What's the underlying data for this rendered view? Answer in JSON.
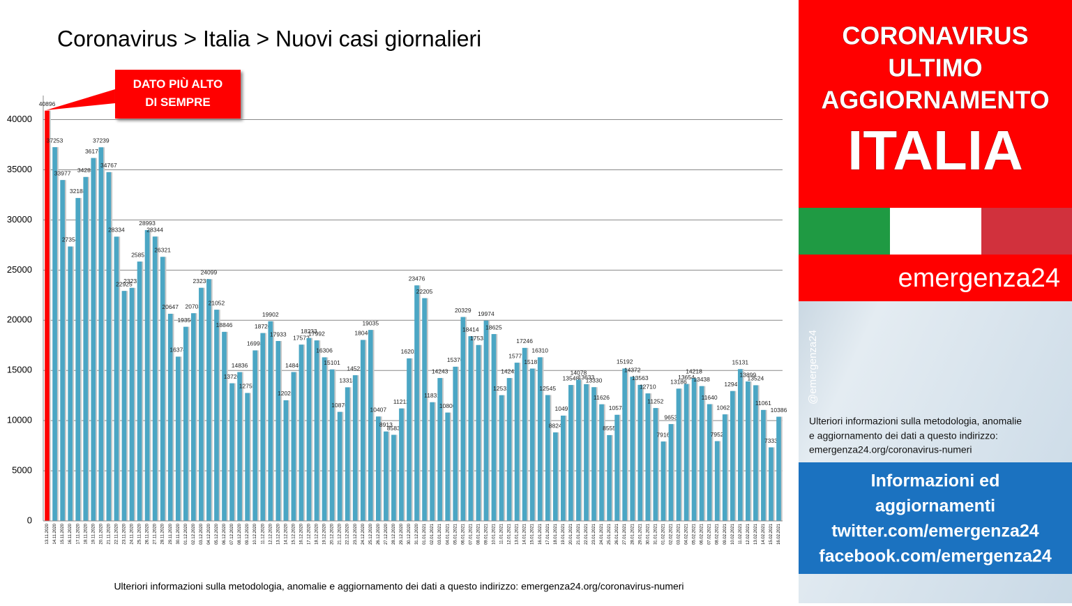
{
  "chart_data": {
    "type": "bar",
    "title": "Coronavirus > Italia > Nuovi casi giornalieri",
    "annotation": "DATO PIÙ ALTO DI SEMPRE",
    "color": "#4ba6c4",
    "highlight_color": "#ff0000",
    "grid": true,
    "ylim": [
      0,
      42400
    ],
    "yticks": [
      0,
      5000,
      10000,
      15000,
      20000,
      25000,
      30000,
      35000,
      40000
    ],
    "categories": [
      "13.11.2020",
      "14.11.2020",
      "15.11.2020",
      "16.11.2020",
      "17.11.2020",
      "18.11.2020",
      "19.11.2020",
      "20.11.2020",
      "21.11.2020",
      "22.11.2020",
      "23.11.2020",
      "24.11.2020",
      "25.11.2020",
      "26.11.2020",
      "27.11.2020",
      "28.11.2020",
      "29.11.2020",
      "30.11.2020",
      "01.12.2020",
      "02.12.2020",
      "03.12.2020",
      "04.12.2020",
      "05.12.2020",
      "06.12.2020",
      "07.12.2020",
      "08.12.2020",
      "09.12.2020",
      "10.12.2020",
      "11.12.2020",
      "12.12.2020",
      "13.12.2020",
      "14.12.2020",
      "15.12.2020",
      "16.12.2020",
      "17.12.2020",
      "18.12.2020",
      "19.12.2020",
      "20.12.2020",
      "21.12.2020",
      "22.12.2020",
      "23.12.2020",
      "24.12.2020",
      "25.12.2020",
      "26.12.2020",
      "27.12.2020",
      "28.12.2020",
      "29.12.2020",
      "30.12.2020",
      "31.12.2020",
      "01.01.2021",
      "02.01.2021",
      "03.01.2021",
      "04.01.2021",
      "05.01.2021",
      "06.01.2021",
      "07.01.2021",
      "08.01.2021",
      "09.01.2021",
      "10.01.2021",
      "11.01.2021",
      "12.01.2021",
      "13.01.2021",
      "14.01.2021",
      "15.01.2021",
      "16.01.2021",
      "17.01.2021",
      "18.01.2021",
      "19.01.2021",
      "20.01.2021",
      "21.01.2021",
      "22.01.2021",
      "23.01.2021",
      "24.01.2021",
      "25.01.2021",
      "26.01.2021",
      "27.01.2021",
      "28.01.2021",
      "29.01.2021",
      "30.01.2021",
      "31.01.2021",
      "01.02.2021",
      "02.02.2021",
      "03.02.2021",
      "04.02.2021",
      "05.02.2021",
      "06.02.2021",
      "07.02.2021",
      "08.02.2021",
      "09.02.2021",
      "10.02.2021",
      "11.02.2021",
      "12.02.2021",
      "13.02.2021",
      "14.02.2021",
      "15.02.2021",
      "16.02.2021"
    ],
    "values": [
      40896,
      37253,
      33977,
      27354,
      32188,
      34283,
      36176,
      37239,
      34767,
      28334,
      22925,
      23231,
      25851,
      28993,
      28344,
      26321,
      20647,
      16374,
      19350,
      20703,
      23236,
      24099,
      21052,
      18846,
      13720,
      14836,
      12755,
      16998,
      18726,
      19902,
      17933,
      12025,
      14840,
      17572,
      18233,
      17992,
      16306,
      15101,
      10870,
      13318,
      14522,
      18040,
      19035,
      10407,
      8913,
      8583,
      11212,
      16202,
      23476,
      22205,
      11831,
      14243,
      10800,
      15370,
      20329,
      18414,
      17533,
      19974,
      18625,
      12532,
      14242,
      15771,
      17246,
      15187,
      16310,
      12545,
      8824,
      10497,
      13548,
      14078,
      13633,
      13330,
      11626,
      8555,
      10578,
      15192,
      14372,
      13563,
      12710,
      11252,
      7916,
      9653,
      13186,
      13654,
      14218,
      13438,
      11640,
      7952,
      10621,
      12947,
      15131,
      13899,
      13524,
      11061,
      7333,
      10386
    ],
    "footnote": "Ulteriori informazioni sulla metodologia, anomalie e aggiornamento dei dati a questo indirizzo: emergenza24.org/coronavirus-numeri"
  },
  "sidebar": {
    "headline": [
      "CORONAVIRUS",
      "ULTIMO",
      "AGGIORNAMENTO"
    ],
    "country": "ITALIA",
    "brand": "emergenza24",
    "handle": "@emergenza24",
    "info": [
      "Ulteriori informazioni sulla metodologia, anomalie",
      "e aggiornamento dei dati a questo indirizzo:",
      "emergenza24.org/coronavirus-numeri"
    ],
    "links": [
      "Informazioni ed",
      "aggiornamenti",
      "twitter.com/emergenza24",
      "facebook.com/emergenza24"
    ]
  }
}
